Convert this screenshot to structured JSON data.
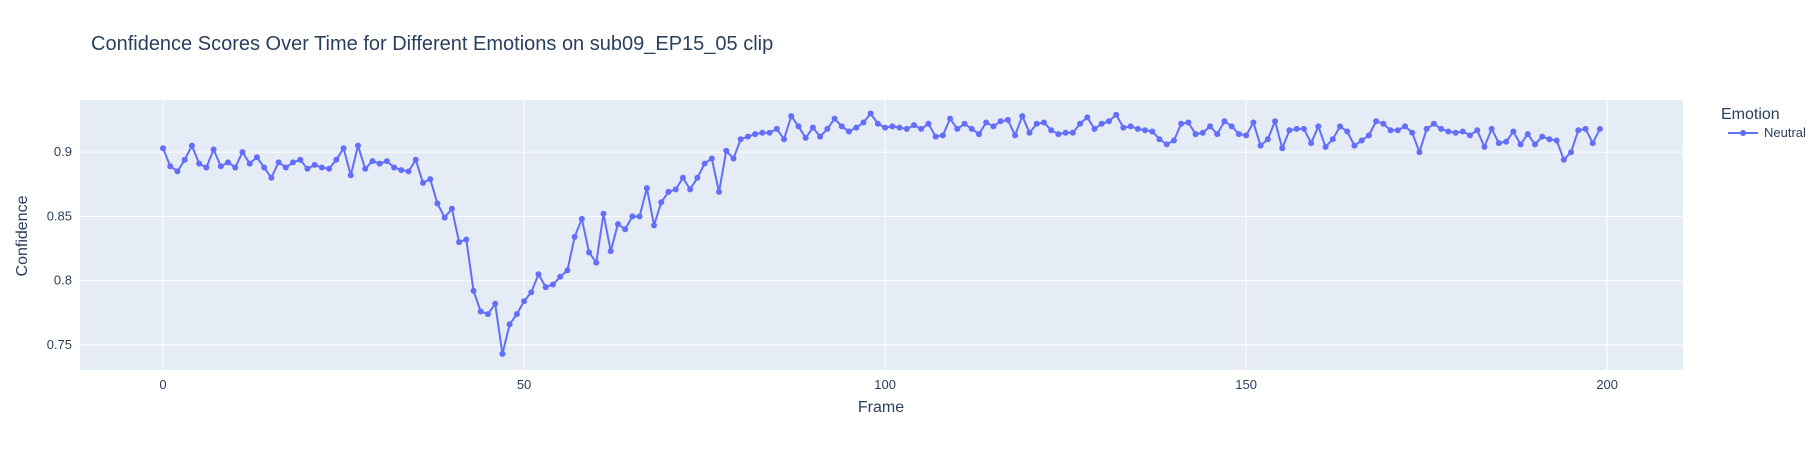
{
  "chart_data": {
    "type": "line",
    "title": "Confidence Scores Over Time for Different Emotions on sub09_EP15_05 clip",
    "xlabel": "Frame",
    "ylabel": "Confidence",
    "xlim": [
      -11.5,
      210.5
    ],
    "ylim": [
      0.7305,
      0.9405
    ],
    "xticks": [
      0,
      50,
      100,
      150,
      200
    ],
    "xtick_labels": [
      "0",
      "50",
      "100",
      "150",
      "200"
    ],
    "yticks": [
      0.75,
      0.8,
      0.85,
      0.9
    ],
    "ytick_labels": [
      "0.75",
      "0.8",
      "0.85",
      "0.9"
    ],
    "grid": true,
    "legend": {
      "title": "Emotion",
      "placement": "right"
    },
    "colors": {
      "plot_bg": "#e5ecf6",
      "grid": "#ffffff",
      "series": "#636efa"
    },
    "series": [
      {
        "name": "Neutral",
        "x": [
          0,
          1,
          2,
          3,
          4,
          5,
          6,
          7,
          8,
          9,
          10,
          11,
          12,
          13,
          14,
          15,
          16,
          17,
          18,
          19,
          20,
          21,
          22,
          23,
          24,
          25,
          26,
          27,
          28,
          29,
          30,
          31,
          32,
          33,
          34,
          35,
          36,
          37,
          38,
          39,
          40,
          41,
          42,
          43,
          44,
          45,
          46,
          47,
          48,
          49,
          50,
          51,
          52,
          53,
          54,
          55,
          56,
          57,
          58,
          59,
          60,
          61,
          62,
          63,
          64,
          65,
          66,
          67,
          68,
          69,
          70,
          71,
          72,
          73,
          74,
          75,
          76,
          77,
          78,
          79,
          80,
          81,
          82,
          83,
          84,
          85,
          86,
          87,
          88,
          89,
          90,
          91,
          92,
          93,
          94,
          95,
          96,
          97,
          98,
          99,
          100,
          101,
          102,
          103,
          104,
          105,
          106,
          107,
          108,
          109,
          110,
          111,
          112,
          113,
          114,
          115,
          116,
          117,
          118,
          119,
          120,
          121,
          122,
          123,
          124,
          125,
          126,
          127,
          128,
          129,
          130,
          131,
          132,
          133,
          134,
          135,
          136,
          137,
          138,
          139,
          140,
          141,
          142,
          143,
          144,
          145,
          146,
          147,
          148,
          149,
          150,
          151,
          152,
          153,
          154,
          155,
          156,
          157,
          158,
          159,
          160,
          161,
          162,
          163,
          164,
          165,
          166,
          167,
          168,
          169,
          170,
          171,
          172,
          173,
          174,
          175,
          176,
          177,
          178,
          179,
          180,
          181,
          182,
          183,
          184,
          185,
          186,
          187,
          188,
          189,
          190,
          191,
          192,
          193,
          194,
          195,
          196,
          197,
          198,
          199
        ],
        "y": [
          0.903,
          0.889,
          0.885,
          0.894,
          0.905,
          0.891,
          0.888,
          0.902,
          0.889,
          0.892,
          0.888,
          0.9,
          0.891,
          0.896,
          0.888,
          0.88,
          0.892,
          0.888,
          0.892,
          0.894,
          0.887,
          0.89,
          0.888,
          0.887,
          0.894,
          0.903,
          0.882,
          0.905,
          0.887,
          0.893,
          0.891,
          0.893,
          0.888,
          0.886,
          0.885,
          0.894,
          0.876,
          0.879,
          0.86,
          0.849,
          0.856,
          0.83,
          0.832,
          0.792,
          0.776,
          0.774,
          0.782,
          0.743,
          0.766,
          0.774,
          0.784,
          0.791,
          0.805,
          0.795,
          0.797,
          0.803,
          0.808,
          0.834,
          0.848,
          0.822,
          0.814,
          0.852,
          0.823,
          0.844,
          0.84,
          0.85,
          0.85,
          0.872,
          0.843,
          0.861,
          0.869,
          0.871,
          0.88,
          0.871,
          0.88,
          0.891,
          0.895,
          0.869,
          0.901,
          0.895,
          0.91,
          0.912,
          0.914,
          0.915,
          0.915,
          0.918,
          0.91,
          0.928,
          0.92,
          0.911,
          0.919,
          0.912,
          0.918,
          0.926,
          0.92,
          0.916,
          0.919,
          0.923,
          0.93,
          0.922,
          0.919,
          0.92,
          0.919,
          0.918,
          0.921,
          0.918,
          0.922,
          0.912,
          0.913,
          0.926,
          0.918,
          0.922,
          0.918,
          0.914,
          0.923,
          0.92,
          0.924,
          0.925,
          0.913,
          0.928,
          0.915,
          0.922,
          0.923,
          0.917,
          0.914,
          0.915,
          0.915,
          0.922,
          0.927,
          0.918,
          0.922,
          0.924,
          0.929,
          0.919,
          0.92,
          0.918,
          0.917,
          0.916,
          0.91,
          0.906,
          0.909,
          0.922,
          0.923,
          0.914,
          0.915,
          0.92,
          0.914,
          0.924,
          0.92,
          0.914,
          0.913,
          0.923,
          0.905,
          0.91,
          0.924,
          0.903,
          0.917,
          0.918,
          0.918,
          0.907,
          0.92,
          0.904,
          0.91,
          0.92,
          0.916,
          0.905,
          0.909,
          0.913,
          0.924,
          0.922,
          0.917,
          0.917,
          0.92,
          0.915,
          0.9,
          0.918,
          0.922,
          0.918,
          0.916,
          0.915,
          0.916,
          0.913,
          0.917,
          0.904,
          0.918,
          0.907,
          0.908,
          0.916,
          0.906,
          0.914,
          0.906,
          0.912,
          0.91,
          0.909,
          0.894,
          0.9,
          0.917,
          0.918,
          0.907,
          0.918
        ]
      }
    ]
  }
}
